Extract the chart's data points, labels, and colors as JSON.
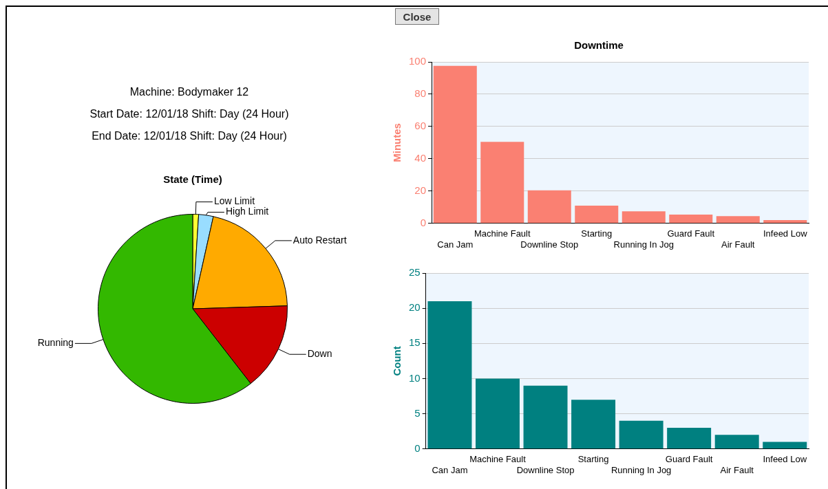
{
  "chart_data": [
    {
      "type": "other",
      "annotations": [
        "Close",
        "Machine: Bodymaker 12",
        "Start Date: 12/01/18 Shift: Day (24 Hour)",
        "End Date: 12/01/18 Shift: Day (24 Hour)"
      ]
    },
    {
      "type": "pie",
      "title": "State (Time)",
      "categories": [
        "Low Limit",
        "High Limit",
        "Auto Restart",
        "Down",
        "Running"
      ],
      "values": [
        1,
        2.5,
        21,
        15,
        60.5
      ],
      "colors": [
        "#ffff33",
        "#99ddff",
        "#ffaa00",
        "#cc0000",
        "#33b800"
      ]
    },
    {
      "type": "bar",
      "title": "Downtime",
      "ylabel": "Minutes",
      "categories": [
        "Can Jam",
        "Machine Fault",
        "Downline Stop",
        "Starting",
        "Running In Jog",
        "Guard Fault",
        "Air Fault",
        "Infeed Low"
      ],
      "values": [
        97.5,
        50.5,
        20.5,
        11,
        7.5,
        5.5,
        4.5,
        2
      ],
      "color": "#fa8072",
      "ylim": [
        0,
        100
      ],
      "yticks": [
        0,
        20,
        40,
        60,
        80,
        100
      ],
      "grid": "y"
    },
    {
      "type": "bar",
      "ylabel": "Count",
      "categories": [
        "Can Jam",
        "Machine Fault",
        "Downline Stop",
        "Starting",
        "Running In Jog",
        "Guard Fault",
        "Air Fault",
        "Infeed Low"
      ],
      "values": [
        21,
        10,
        9,
        7,
        4,
        3,
        2,
        1
      ],
      "color": "#008080",
      "ylim": [
        0,
        25
      ],
      "yticks": [
        0,
        5,
        10,
        15,
        20,
        25
      ],
      "grid": "y"
    }
  ]
}
